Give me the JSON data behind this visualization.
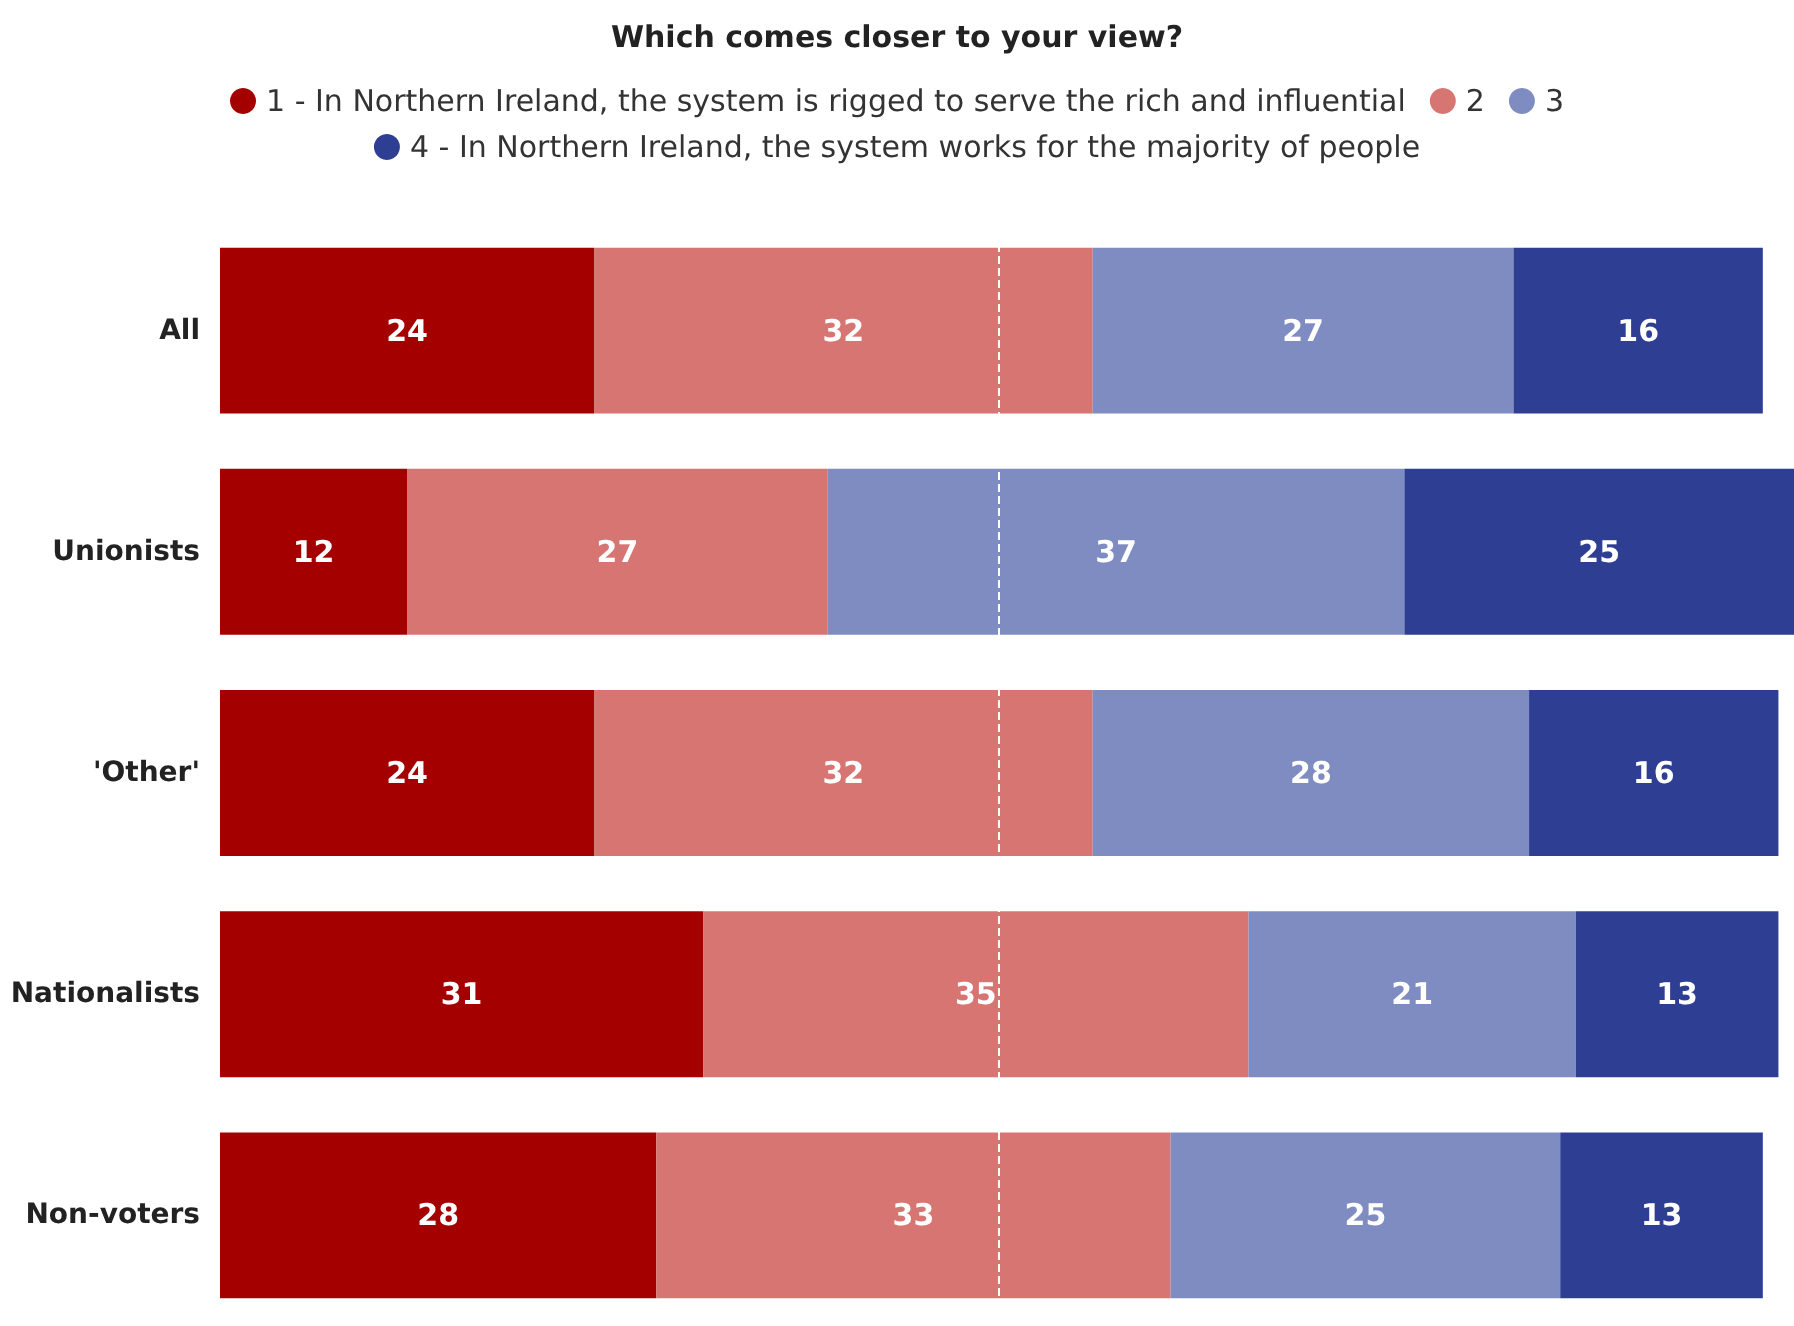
{
  "chart_data": {
    "type": "bar",
    "orientation": "horizontal",
    "stacked": true,
    "title": "Which comes closer to your view?",
    "categories": [
      "All",
      "Unionists",
      "'Other'",
      "Nationalists",
      "Non-voters"
    ],
    "series": [
      {
        "name": "1 - In Northern Ireland, the system is rigged to serve the rich and influential",
        "color": "#a50000",
        "values": [
          24,
          12,
          24,
          31,
          28
        ]
      },
      {
        "name": "2",
        "color": "#d67572",
        "values": [
          32,
          27,
          32,
          35,
          33
        ]
      },
      {
        "name": "3",
        "color": "#7f8cc1",
        "values": [
          27,
          37,
          28,
          21,
          25
        ]
      },
      {
        "name": "4 - In Northern Ireland, the system works for the majority of people",
        "color": "#2e3e93",
        "values": [
          16,
          25,
          16,
          13,
          13
        ]
      }
    ],
    "xlim": [
      0,
      101
    ],
    "data_labels": true,
    "legend": "top",
    "tick_labels": "y",
    "ref_lines": [
      {
        "axis": "x",
        "value": 50,
        "color": "#ffffff",
        "line_style": "dashed"
      }
    ]
  }
}
